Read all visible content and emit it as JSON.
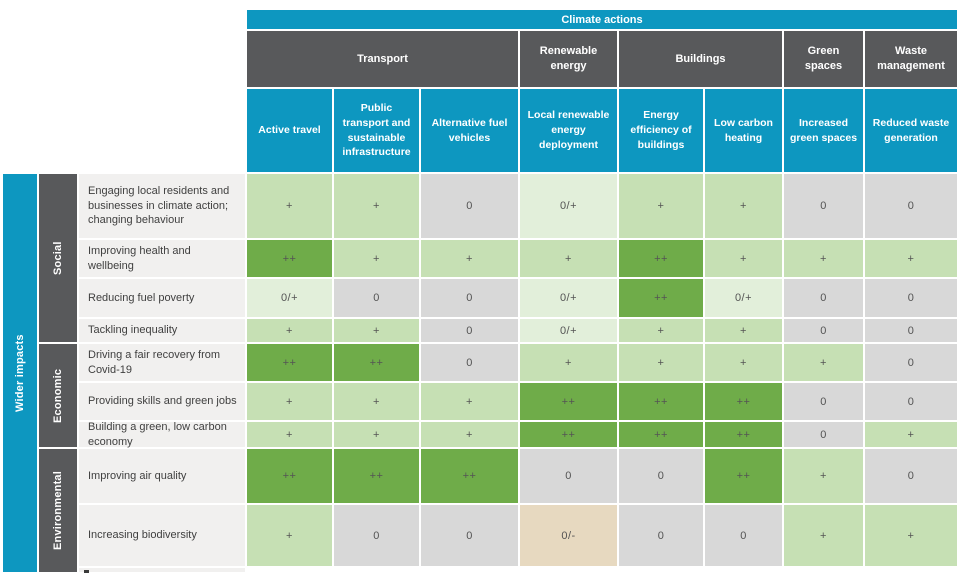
{
  "chart_data": {
    "type": "heatmap",
    "title": "Climate actions",
    "row_axis_label": "Wider impacts",
    "column_groups": [
      {
        "label": "Transport",
        "span": 3
      },
      {
        "label": "Renewable energy",
        "span": 1
      },
      {
        "label": "Buildings",
        "span": 2
      },
      {
        "label": "Green spaces",
        "span": 1
      },
      {
        "label": "Waste management",
        "span": 1
      }
    ],
    "columns": [
      "Active travel",
      "Public transport and sustainable infrastructure",
      "Alternative fuel vehicles",
      "Local renewable energy deployment",
      "Energy efficiency of buildings",
      "Low carbon heating",
      "Increased green spaces",
      "Reduced waste generation"
    ],
    "row_groups": [
      {
        "label": "Social",
        "rows": 4
      },
      {
        "label": "Economic",
        "rows": 3
      },
      {
        "label": "Environmental",
        "rows": 2
      }
    ],
    "rows": [
      {
        "group": "Social",
        "label": "Engaging local residents and businesses in climate action; changing behaviour",
        "values": [
          "+",
          "+",
          "0",
          "0/+",
          "+",
          "+",
          "0",
          "0"
        ]
      },
      {
        "group": "Social",
        "label": "Improving health and wellbeing",
        "values": [
          "++",
          "+",
          "+",
          "+",
          "++",
          "+",
          "+",
          "+"
        ]
      },
      {
        "group": "Social",
        "label": "Reducing fuel poverty",
        "values": [
          "0/+",
          "0",
          "0",
          "0/+",
          "++",
          "0/+",
          "0",
          "0"
        ]
      },
      {
        "group": "Social",
        "label": "Tackling inequality",
        "values": [
          "+",
          "+",
          "0",
          "0/+",
          "+",
          "+",
          "0",
          "0"
        ]
      },
      {
        "group": "Economic",
        "label": "Driving a fair recovery from Covid-19",
        "values": [
          "++",
          "++",
          "0",
          "+",
          "+",
          "+",
          "+",
          "0"
        ]
      },
      {
        "group": "Economic",
        "label": "Providing skills and green jobs",
        "values": [
          "+",
          "+",
          "+",
          "++",
          "++",
          "++",
          "0",
          "0"
        ]
      },
      {
        "group": "Economic",
        "label": "Building a green, low carbon economy",
        "values": [
          "+",
          "+",
          "+",
          "++",
          "++",
          "++",
          "0",
          "+"
        ]
      },
      {
        "group": "Environmental",
        "label": "Improving air quality",
        "values": [
          "++",
          "++",
          "++",
          "0",
          "0",
          "++",
          "+",
          "0"
        ]
      },
      {
        "group": "Environmental",
        "label": "Increasing biodiversity",
        "values": [
          "+",
          "0",
          "0",
          "0/-",
          "0",
          "0",
          "+",
          "+"
        ]
      }
    ],
    "value_scale": [
      "0/-",
      "0",
      "0/+",
      "+",
      "++"
    ],
    "value_colors": {
      "++": "#6FAC49",
      "+": "#C6E0B4",
      "0/+": "#E2EFDA",
      "0": "#D8D8D8",
      "0/-": "#E7D9C0"
    },
    "theme_colors": {
      "teal": "#0D97C0",
      "dark_gray": "#58595B",
      "row_label_bg": "#F1F0EF"
    }
  }
}
